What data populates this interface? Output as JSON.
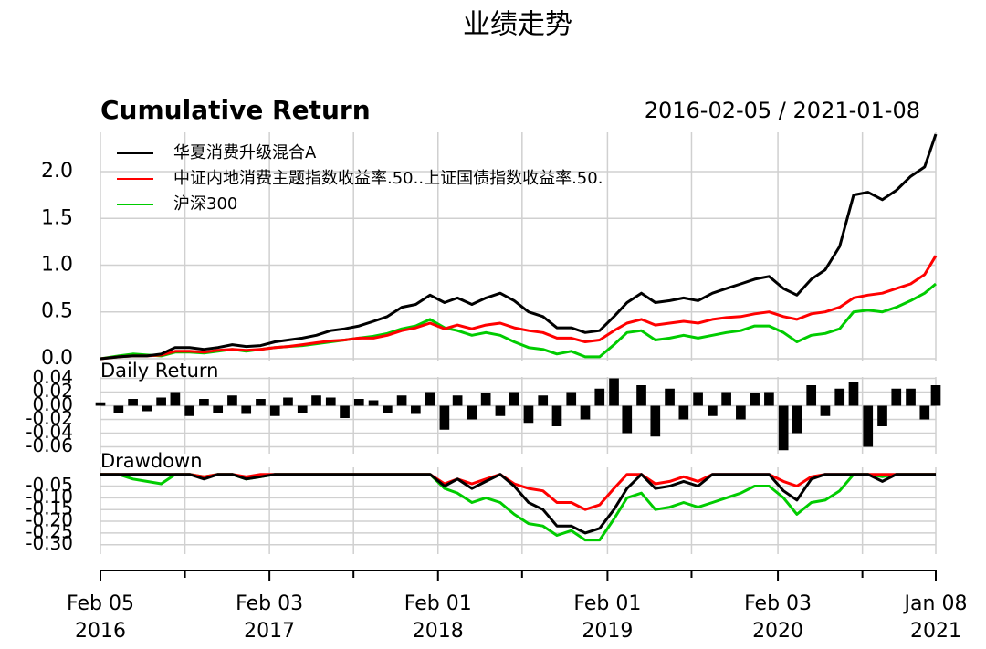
{
  "title": "业绩走势",
  "chart_data": [
    {
      "type": "line",
      "title": "Cumulative Return",
      "subtitle": "2016-02-05 / 2021-01-08",
      "grid": true,
      "legend": "top-left",
      "xlim": [
        "2016-02-05",
        "2021-01-08"
      ],
      "x": [
        "2016-02-05",
        "2016-03-15",
        "2016-04-15",
        "2016-05-15",
        "2016-06-15",
        "2016-07-15",
        "2016-08-15",
        "2016-09-15",
        "2016-10-15",
        "2016-11-15",
        "2016-12-15",
        "2017-01-15",
        "2017-02-15",
        "2017-03-15",
        "2017-04-15",
        "2017-05-15",
        "2017-06-15",
        "2017-07-15",
        "2017-08-15",
        "2017-09-15",
        "2017-10-15",
        "2017-11-15",
        "2017-12-15",
        "2018-01-15",
        "2018-02-15",
        "2018-03-15",
        "2018-04-15",
        "2018-05-15",
        "2018-06-15",
        "2018-07-15",
        "2018-08-15",
        "2018-09-15",
        "2018-10-15",
        "2018-11-15",
        "2018-12-15",
        "2019-01-15",
        "2019-02-15",
        "2019-03-15",
        "2019-04-15",
        "2019-05-15",
        "2019-06-15",
        "2019-07-15",
        "2019-08-15",
        "2019-09-15",
        "2019-10-15",
        "2019-11-15",
        "2019-12-15",
        "2020-01-15",
        "2020-02-15",
        "2020-03-15",
        "2020-04-15",
        "2020-05-15",
        "2020-06-15",
        "2020-07-15",
        "2020-08-15",
        "2020-09-15",
        "2020-10-15",
        "2020-11-15",
        "2020-12-15",
        "2021-01-08"
      ],
      "series": [
        {
          "name": "华夏消费升级混合A",
          "color": "#000000",
          "values": [
            0,
            0.02,
            0.03,
            0.03,
            0.05,
            0.12,
            0.12,
            0.1,
            0.12,
            0.15,
            0.13,
            0.14,
            0.18,
            0.2,
            0.22,
            0.25,
            0.3,
            0.32,
            0.35,
            0.4,
            0.45,
            0.55,
            0.58,
            0.68,
            0.6,
            0.65,
            0.58,
            0.65,
            0.7,
            0.62,
            0.5,
            0.45,
            0.33,
            0.33,
            0.28,
            0.3,
            0.45,
            0.6,
            0.7,
            0.6,
            0.62,
            0.65,
            0.62,
            0.7,
            0.75,
            0.8,
            0.85,
            0.88,
            0.75,
            0.68,
            0.85,
            0.95,
            1.2,
            1.75,
            1.78,
            1.7,
            1.8,
            1.95,
            2.05,
            2.4
          ]
        },
        {
          "name": "中证内地消费主题指数收益率.50..上证国债指数收益率.50.",
          "color": "#ff0000",
          "values": [
            0,
            0.02,
            0.03,
            0.03,
            0.04,
            0.08,
            0.08,
            0.07,
            0.09,
            0.1,
            0.09,
            0.1,
            0.12,
            0.13,
            0.15,
            0.17,
            0.19,
            0.2,
            0.22,
            0.22,
            0.25,
            0.3,
            0.33,
            0.38,
            0.32,
            0.36,
            0.32,
            0.36,
            0.38,
            0.33,
            0.3,
            0.28,
            0.22,
            0.22,
            0.18,
            0.2,
            0.3,
            0.38,
            0.42,
            0.36,
            0.38,
            0.4,
            0.38,
            0.42,
            0.44,
            0.45,
            0.48,
            0.5,
            0.45,
            0.42,
            0.48,
            0.5,
            0.55,
            0.65,
            0.68,
            0.7,
            0.75,
            0.8,
            0.9,
            1.1
          ]
        },
        {
          "name": "沪深300",
          "color": "#00cc00",
          "values": [
            0,
            0.03,
            0.05,
            0.04,
            0.03,
            0.07,
            0.07,
            0.06,
            0.08,
            0.1,
            0.08,
            0.1,
            0.12,
            0.13,
            0.14,
            0.16,
            0.18,
            0.2,
            0.22,
            0.24,
            0.27,
            0.32,
            0.35,
            0.42,
            0.33,
            0.3,
            0.25,
            0.28,
            0.25,
            0.18,
            0.12,
            0.1,
            0.05,
            0.08,
            0.02,
            0.02,
            0.15,
            0.28,
            0.3,
            0.2,
            0.22,
            0.25,
            0.22,
            0.25,
            0.28,
            0.3,
            0.35,
            0.35,
            0.28,
            0.18,
            0.25,
            0.27,
            0.32,
            0.5,
            0.52,
            0.5,
            0.55,
            0.62,
            0.7,
            0.8
          ]
        }
      ],
      "ylim": [
        -0.02,
        2.42
      ],
      "yticks": [
        {
          "value": 0,
          "label": "0.0"
        },
        0.5,
        {
          "value": 1,
          "label": "1.0"
        },
        1.5,
        {
          "value": 2,
          "label": "2.0"
        }
      ]
    },
    {
      "type": "bar",
      "title": "Daily Return",
      "grid": true,
      "color": "#000000",
      "xlim": [
        "2016-02-05",
        "2021-01-08"
      ],
      "x": [
        "2016-02-05",
        "2016-03-15",
        "2016-04-15",
        "2016-05-15",
        "2016-06-15",
        "2016-07-15",
        "2016-08-15",
        "2016-09-15",
        "2016-10-15",
        "2016-11-15",
        "2016-12-15",
        "2017-01-15",
        "2017-02-15",
        "2017-03-15",
        "2017-04-15",
        "2017-05-15",
        "2017-06-15",
        "2017-07-15",
        "2017-08-15",
        "2017-09-15",
        "2017-10-15",
        "2017-11-15",
        "2017-12-15",
        "2018-01-15",
        "2018-02-15",
        "2018-03-15",
        "2018-04-15",
        "2018-05-15",
        "2018-06-15",
        "2018-07-15",
        "2018-08-15",
        "2018-09-15",
        "2018-10-15",
        "2018-11-15",
        "2018-12-15",
        "2019-01-15",
        "2019-02-15",
        "2019-03-15",
        "2019-04-15",
        "2019-05-15",
        "2019-06-15",
        "2019-07-15",
        "2019-08-15",
        "2019-09-15",
        "2019-10-15",
        "2019-11-15",
        "2019-12-15",
        "2020-01-15",
        "2020-02-15",
        "2020-03-15",
        "2020-04-15",
        "2020-05-15",
        "2020-06-15",
        "2020-07-15",
        "2020-08-15",
        "2020-09-15",
        "2020-10-15",
        "2020-11-15",
        "2020-12-15",
        "2021-01-08"
      ],
      "values": [
        0.005,
        -0.01,
        0.01,
        -0.008,
        0.012,
        0.02,
        -0.015,
        0.01,
        -0.01,
        0.015,
        -0.012,
        0.01,
        -0.015,
        0.012,
        -0.01,
        0.015,
        0.012,
        -0.018,
        0.01,
        0.008,
        -0.01,
        0.015,
        -0.012,
        0.02,
        -0.035,
        0.015,
        -0.02,
        0.018,
        -0.015,
        0.02,
        -0.025,
        0.015,
        -0.03,
        0.02,
        -0.02,
        0.025,
        0.04,
        -0.04,
        0.03,
        -0.045,
        0.025,
        -0.02,
        0.02,
        -0.015,
        0.02,
        -0.02,
        0.018,
        0.02,
        -0.065,
        -0.04,
        0.03,
        -0.015,
        0.025,
        0.035,
        -0.06,
        -0.03,
        0.025,
        0.025,
        -0.02,
        0.03
      ],
      "ylim": [
        -0.07,
        0.042
      ],
      "yticks": [
        -0.06,
        -0.04,
        -0.02,
        {
          "value": 0,
          "label": "0.00"
        },
        0.02,
        0.04
      ]
    },
    {
      "type": "line",
      "title": "Drawdown",
      "grid": true,
      "xlim": [
        "2016-02-05",
        "2021-01-08"
      ],
      "x": [
        "2016-02-05",
        "2016-03-15",
        "2016-04-15",
        "2016-05-15",
        "2016-06-15",
        "2016-07-15",
        "2016-08-15",
        "2016-09-15",
        "2016-10-15",
        "2016-11-15",
        "2016-12-15",
        "2017-01-15",
        "2017-02-15",
        "2017-03-15",
        "2017-04-15",
        "2017-05-15",
        "2017-06-15",
        "2017-07-15",
        "2017-08-15",
        "2017-09-15",
        "2017-10-15",
        "2017-11-15",
        "2017-12-15",
        "2018-01-15",
        "2018-02-15",
        "2018-03-15",
        "2018-04-15",
        "2018-05-15",
        "2018-06-15",
        "2018-07-15",
        "2018-08-15",
        "2018-09-15",
        "2018-10-15",
        "2018-11-15",
        "2018-12-15",
        "2019-01-15",
        "2019-02-15",
        "2019-03-15",
        "2019-04-15",
        "2019-05-15",
        "2019-06-15",
        "2019-07-15",
        "2019-08-15",
        "2019-09-15",
        "2019-10-15",
        "2019-11-15",
        "2019-12-15",
        "2020-01-15",
        "2020-02-15",
        "2020-03-15",
        "2020-04-15",
        "2020-05-15",
        "2020-06-15",
        "2020-07-15",
        "2020-08-15",
        "2020-09-15",
        "2020-10-15",
        "2020-11-15",
        "2020-12-15",
        "2021-01-08"
      ],
      "series": [
        {
          "color": "#000000",
          "values": [
            0,
            0,
            0,
            0,
            0,
            0,
            0,
            -0.02,
            0,
            0,
            -0.02,
            -0.01,
            0,
            0,
            0,
            0,
            0,
            0,
            0,
            0,
            0,
            0,
            0,
            0,
            -0.05,
            -0.02,
            -0.06,
            -0.03,
            0,
            -0.05,
            -0.12,
            -0.15,
            -0.22,
            -0.22,
            -0.25,
            -0.23,
            -0.15,
            -0.06,
            0,
            -0.06,
            -0.05,
            -0.03,
            -0.05,
            0,
            0,
            0,
            0,
            0,
            -0.07,
            -0.11,
            -0.02,
            0,
            0,
            0,
            0,
            -0.03,
            0,
            0,
            0,
            0
          ]
        },
        {
          "color": "#ff0000",
          "values": [
            0,
            0,
            0,
            0,
            0,
            0,
            0,
            -0.01,
            0,
            0,
            -0.01,
            0,
            0,
            0,
            0,
            0,
            0,
            0,
            0,
            0,
            0,
            0,
            0,
            0,
            -0.04,
            -0.02,
            -0.04,
            -0.02,
            0,
            -0.04,
            -0.06,
            -0.07,
            -0.12,
            -0.12,
            -0.15,
            -0.13,
            -0.06,
            0,
            0,
            -0.04,
            -0.03,
            -0.01,
            -0.03,
            0,
            0,
            0,
            0,
            0,
            -0.03,
            -0.05,
            -0.01,
            0,
            0,
            0,
            0,
            0,
            0,
            0,
            0,
            0
          ]
        },
        {
          "color": "#00cc00",
          "values": [
            0,
            0,
            -0.02,
            -0.03,
            -0.04,
            0,
            0,
            -0.01,
            0,
            0,
            -0.02,
            -0.01,
            0,
            0,
            0,
            0,
            0,
            0,
            0,
            0,
            0,
            0,
            0,
            0,
            -0.06,
            -0.08,
            -0.12,
            -0.1,
            -0.12,
            -0.17,
            -0.21,
            -0.22,
            -0.26,
            -0.24,
            -0.28,
            -0.28,
            -0.19,
            -0.1,
            -0.08,
            -0.15,
            -0.14,
            -0.12,
            -0.14,
            -0.12,
            -0.1,
            -0.08,
            -0.05,
            -0.05,
            -0.1,
            -0.17,
            -0.12,
            -0.11,
            -0.07,
            0,
            0,
            -0.01,
            0,
            0,
            0,
            0
          ]
        }
      ],
      "ylim": [
        -0.34,
        0.03
      ],
      "yticks": [
        -0.05,
        {
          "value": -0.1,
          "label": "-0.10"
        },
        -0.15,
        {
          "value": -0.2,
          "label": "-0.20"
        },
        -0.25,
        {
          "value": -0.3,
          "label": "-0.30"
        }
      ],
      "xticks": [
        {
          "value": "2016-02-05",
          "label": "Feb 05\n2016"
        },
        {
          "value": "2017-02-03",
          "label": "Feb 03\n2017"
        },
        {
          "value": "2018-02-01",
          "label": "Feb 01\n2018"
        },
        {
          "value": "2019-02-01",
          "label": "Feb 01\n2019"
        },
        {
          "value": "2020-02-03",
          "label": "Feb 03\n2020"
        },
        {
          "value": "2021-01-08",
          "label": "Jan 08\n2021"
        }
      ],
      "xminorticks": [
        "2016-08-05",
        "2017-08-03",
        "2018-08-01",
        "2019-08-01",
        "2020-08-03"
      ]
    }
  ]
}
